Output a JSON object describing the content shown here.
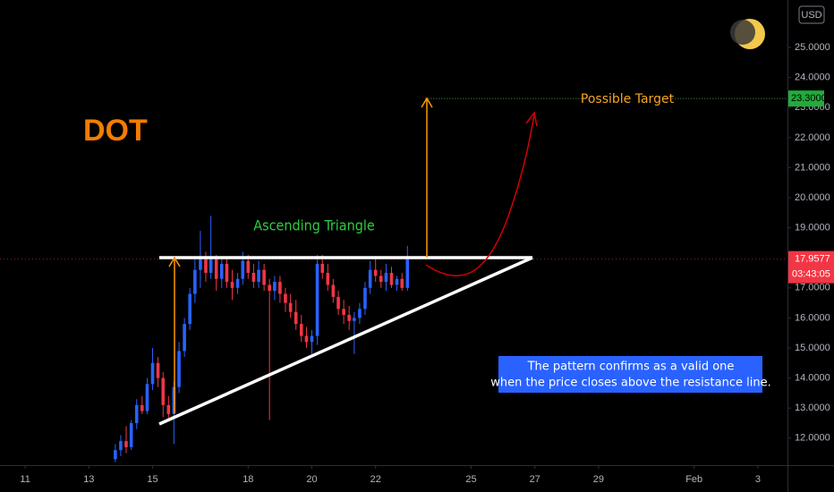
{
  "chart_data": {
    "type": "candlestick",
    "title": "DOT",
    "annotations": {
      "pattern": "Ascending Triangle",
      "target": "Possible Target",
      "note": [
        "The pattern confirms as a valid one",
        "when the price closes above the resistance line."
      ]
    },
    "currency": "USD",
    "countdown": "03:43:05",
    "up_color": "#2962ff",
    "down_color": "#f23645",
    "target": {
      "value": 23.3,
      "label": "23.3000"
    },
    "last_price": {
      "value": 17.9577,
      "label": "17.9577"
    },
    "xlim": [
      10.21,
      34.93
    ],
    "xticks": [
      11,
      13,
      15,
      18,
      20,
      22,
      25,
      27,
      29,
      {
        "value": 32,
        "label": "Feb"
      },
      {
        "value": 34,
        "label": "3"
      }
    ],
    "ylim": [
      11.1,
      26.58
    ],
    "yticks": [
      {
        "value": 12,
        "label": "12.0000"
      },
      {
        "value": 13,
        "label": "13.0000"
      },
      {
        "value": 14,
        "label": "14.0000"
      },
      {
        "value": 15,
        "label": "15.0000"
      },
      {
        "value": 16,
        "label": "16.0000"
      },
      {
        "value": 17,
        "label": "17.0000"
      },
      {
        "value": 18,
        "label": "18.0000"
      },
      {
        "value": 19,
        "label": "19.0000"
      },
      {
        "value": 20,
        "label": "20.0000"
      },
      {
        "value": 21,
        "label": "21.0000"
      },
      {
        "value": 22,
        "label": "22.0000"
      },
      {
        "value": 23,
        "label": "23.0000"
      },
      {
        "value": 24,
        "label": "24.0000"
      },
      {
        "value": 25,
        "label": "25.0000"
      }
    ],
    "x": [
      13.83,
      14,
      14.17,
      14.33,
      14.5,
      14.67,
      14.83,
      15,
      15.17,
      15.33,
      15.5,
      15.67,
      15.83,
      16,
      16.17,
      16.33,
      16.5,
      16.67,
      16.83,
      17,
      17.17,
      17.33,
      17.5,
      17.67,
      17.83,
      18,
      18.17,
      18.33,
      18.5,
      18.67,
      18.83,
      19,
      19.17,
      19.33,
      19.5,
      19.67,
      19.83,
      20,
      20.17,
      20.33,
      20.5,
      20.67,
      20.83,
      21,
      21.17,
      21.33,
      21.5,
      21.67,
      21.83,
      22,
      22.17,
      22.33,
      22.5,
      22.67,
      22.83,
      23
    ],
    "open": [
      11.3,
      11.6,
      11.9,
      11.7,
      12.5,
      13.1,
      12.9,
      13.8,
      14.5,
      14.0,
      13.1,
      12.8,
      13.7,
      14.9,
      15.8,
      16.8,
      17.6,
      18.0,
      17.5,
      18.0,
      17.3,
      17.8,
      17.2,
      17.0,
      17.3,
      17.9,
      17.5,
      17.2,
      17.6,
      17.1,
      16.9,
      17.2,
      16.8,
      16.5,
      16.2,
      15.8,
      15.4,
      15.2,
      15.4,
      17.8,
      17.5,
      17.1,
      16.7,
      16.3,
      16.1,
      15.9,
      16.0,
      16.3,
      17.0,
      17.6,
      17.4,
      17.2,
      17.5,
      17.1,
      17.3,
      17.0
    ],
    "high": [
      11.8,
      12.1,
      12.4,
      12.6,
      13.3,
      13.4,
      14.0,
      15.0,
      14.7,
      14.2,
      13.4,
      13.9,
      15.2,
      16.0,
      17.0,
      18.0,
      18.9,
      18.2,
      19.4,
      18.1,
      18.0,
      18.0,
      17.6,
      17.5,
      18.2,
      18.1,
      17.8,
      17.9,
      17.8,
      17.3,
      17.4,
      17.4,
      17.0,
      16.8,
      16.6,
      16.1,
      15.7,
      15.6,
      18.1,
      18.1,
      17.8,
      17.3,
      16.9,
      16.6,
      16.4,
      16.2,
      16.5,
      17.2,
      17.9,
      18.0,
      17.6,
      17.8,
      17.7,
      17.4,
      17.5,
      18.4
    ],
    "low": [
      11.2,
      11.4,
      11.5,
      11.6,
      12.3,
      12.8,
      12.8,
      13.6,
      13.7,
      12.7,
      12.6,
      11.8,
      13.5,
      14.7,
      15.6,
      16.5,
      17.0,
      17.2,
      17.3,
      16.9,
      17.0,
      17.0,
      16.6,
      16.8,
      17.1,
      17.3,
      17.0,
      17.0,
      16.9,
      12.6,
      16.6,
      16.5,
      16.2,
      16.0,
      15.6,
      15.2,
      15.0,
      14.8,
      15.1,
      17.3,
      16.9,
      16.5,
      16.1,
      15.8,
      15.6,
      14.8,
      15.8,
      16.1,
      16.8,
      17.2,
      17.0,
      16.9,
      17.0,
      16.9,
      16.9,
      16.9
    ],
    "close": [
      11.6,
      11.9,
      11.7,
      12.5,
      13.1,
      12.9,
      13.8,
      14.5,
      14.0,
      13.1,
      12.8,
      13.7,
      14.9,
      15.8,
      16.8,
      17.6,
      18.0,
      17.5,
      18.0,
      17.3,
      17.8,
      17.2,
      17.0,
      17.3,
      17.9,
      17.5,
      17.2,
      17.6,
      17.1,
      16.9,
      17.2,
      16.8,
      16.5,
      16.2,
      15.8,
      15.4,
      15.2,
      15.4,
      17.8,
      17.5,
      17.1,
      16.7,
      16.3,
      16.1,
      15.9,
      16.0,
      16.3,
      17.0,
      17.6,
      17.4,
      17.2,
      17.5,
      17.1,
      17.3,
      17.0,
      17.9577
    ]
  }
}
